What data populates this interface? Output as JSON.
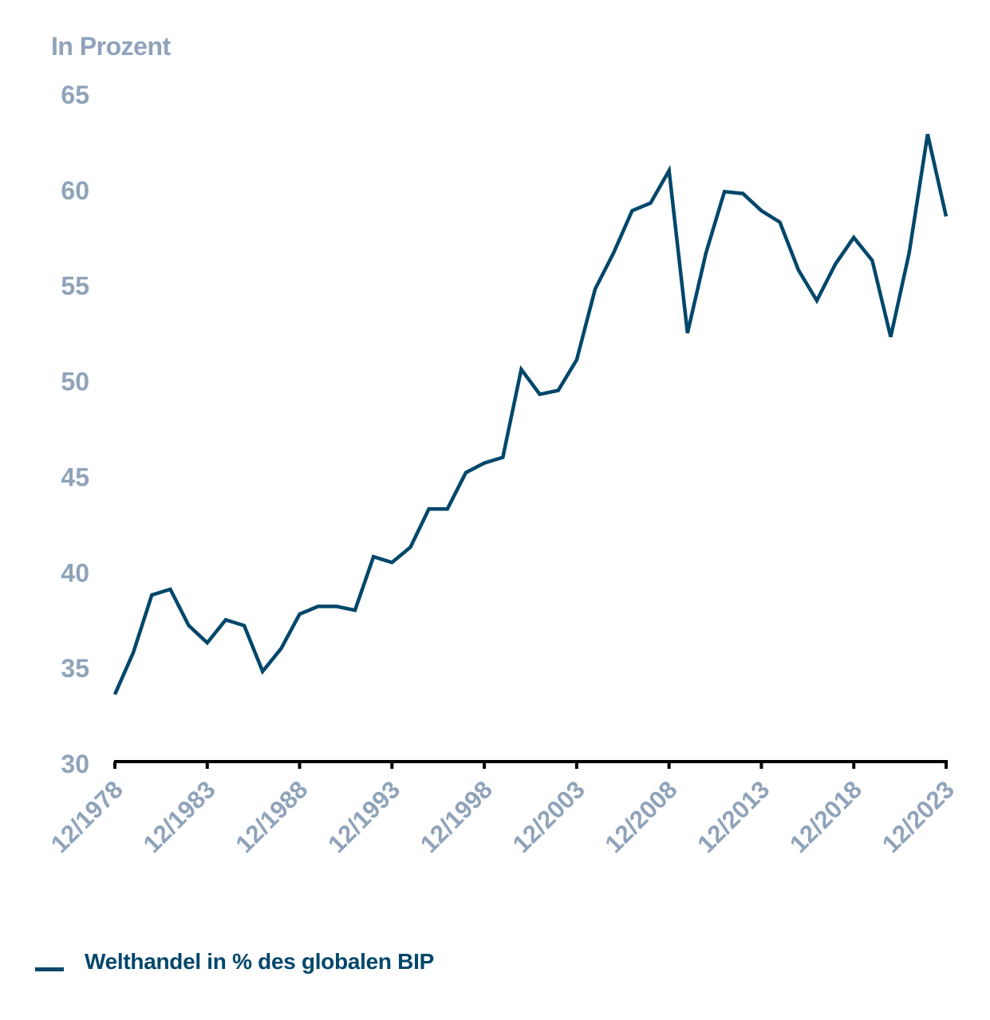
{
  "chart_data": {
    "type": "line",
    "title": "",
    "ylabel": "In Prozent",
    "xlabel": "",
    "ylim": [
      30,
      65
    ],
    "yticks": [
      30,
      35,
      40,
      45,
      50,
      55,
      60,
      65
    ],
    "xtick_labels": [
      "12/1978",
      "12/1983",
      "12/1988",
      "12/1993",
      "12/1998",
      "12/2003",
      "12/2008",
      "12/2013",
      "12/2018",
      "12/2023"
    ],
    "grid": false,
    "legend_position": "bottom-left",
    "x": [
      "12/1978",
      "12/1979",
      "12/1980",
      "12/1981",
      "12/1982",
      "12/1983",
      "12/1984",
      "12/1985",
      "12/1986",
      "12/1987",
      "12/1988",
      "12/1989",
      "12/1990",
      "12/1991",
      "12/1992",
      "12/1993",
      "12/1994",
      "12/1995",
      "12/1996",
      "12/1997",
      "12/1998",
      "12/1999",
      "12/2000",
      "12/2001",
      "12/2002",
      "12/2003",
      "12/2004",
      "12/2005",
      "12/2006",
      "12/2007",
      "12/2008",
      "12/2009",
      "12/2010",
      "12/2011",
      "12/2012",
      "12/2013",
      "12/2014",
      "12/2015",
      "12/2016",
      "12/2017",
      "12/2018",
      "12/2019",
      "12/2020",
      "12/2021",
      "12/2022",
      "12/2023"
    ],
    "series": [
      {
        "name": "Welthandel in % des globalen BIP",
        "color": "#00476b",
        "values": [
          33.6,
          35.8,
          38.8,
          39.1,
          37.2,
          36.3,
          37.5,
          37.2,
          34.8,
          36.0,
          37.8,
          38.2,
          38.2,
          38.0,
          40.8,
          40.5,
          41.3,
          43.3,
          43.3,
          45.2,
          45.7,
          46.0,
          50.6,
          49.3,
          49.5,
          51.1,
          54.8,
          56.7,
          58.9,
          59.3,
          61.0,
          52.5,
          56.7,
          59.9,
          59.8,
          58.9,
          58.3,
          55.8,
          54.2,
          56.1,
          57.5,
          56.3,
          52.3,
          56.7,
          62.9,
          58.6
        ]
      }
    ]
  },
  "labels": {
    "unit": "In Prozent",
    "legend": "Welthandel in % des globalen BIP"
  },
  "colors": {
    "line": "#00476b",
    "tick_text": "#8fa3ba",
    "axis": "#000000"
  }
}
